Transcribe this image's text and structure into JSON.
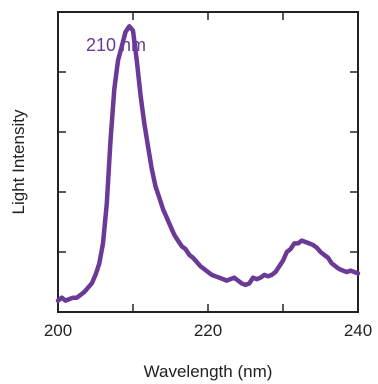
{
  "chart_data": {
    "type": "line",
    "xlabel": "Wavelength (nm)",
    "ylabel": "Light Intensity",
    "annotation": "210 nm",
    "xlim": [
      200,
      240
    ],
    "ylim": [
      0,
      1.05
    ],
    "x_ticks": [
      200,
      220,
      240
    ],
    "x_minor_ticks": [
      210,
      230
    ],
    "y_ticks_labeled": false,
    "y_tick_count": 4,
    "grid": false,
    "series": [
      {
        "color": "#6b3a96",
        "x": [
          200.0,
          200.5,
          201.0,
          201.5,
          202.0,
          202.5,
          203.0,
          203.5,
          204.0,
          204.5,
          205.0,
          205.5,
          206.0,
          206.5,
          207.0,
          207.5,
          208.0,
          208.5,
          209.0,
          209.5,
          210.0,
          210.5,
          211.0,
          211.5,
          212.0,
          212.5,
          213.0,
          213.5,
          214.0,
          214.5,
          215.0,
          215.5,
          216.0,
          216.5,
          217.0,
          217.5,
          218.0,
          218.5,
          219.0,
          219.5,
          220.0,
          220.5,
          221.0,
          221.5,
          222.0,
          222.5,
          223.0,
          223.5,
          224.0,
          224.5,
          225.0,
          225.5,
          226.0,
          226.5,
          227.0,
          227.5,
          228.0,
          228.5,
          229.0,
          229.5,
          230.0,
          230.5,
          231.0,
          231.5,
          232.0,
          232.5,
          233.0,
          233.5,
          234.0,
          234.5,
          235.0,
          235.5,
          236.0,
          236.5,
          237.0,
          237.5,
          238.0,
          238.5,
          239.0,
          239.5,
          240.0
        ],
        "y": [
          0.04,
          0.05,
          0.04,
          0.045,
          0.05,
          0.05,
          0.06,
          0.07,
          0.085,
          0.1,
          0.13,
          0.17,
          0.24,
          0.38,
          0.6,
          0.78,
          0.88,
          0.93,
          0.98,
          1.0,
          0.985,
          0.88,
          0.76,
          0.66,
          0.58,
          0.5,
          0.44,
          0.4,
          0.36,
          0.33,
          0.3,
          0.27,
          0.25,
          0.23,
          0.22,
          0.2,
          0.19,
          0.175,
          0.16,
          0.15,
          0.14,
          0.13,
          0.125,
          0.12,
          0.115,
          0.11,
          0.115,
          0.12,
          0.11,
          0.1,
          0.095,
          0.1,
          0.12,
          0.115,
          0.12,
          0.13,
          0.125,
          0.13,
          0.14,
          0.16,
          0.18,
          0.21,
          0.22,
          0.24,
          0.24,
          0.25,
          0.245,
          0.24,
          0.235,
          0.225,
          0.21,
          0.2,
          0.19,
          0.17,
          0.16,
          0.15,
          0.145,
          0.14,
          0.145,
          0.14,
          0.135
        ]
      }
    ]
  }
}
